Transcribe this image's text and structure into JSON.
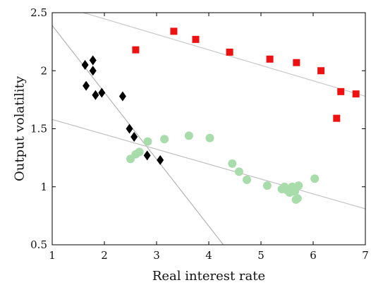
{
  "chart_data": {
    "type": "scatter",
    "title": "",
    "xlabel": "Real interest rate",
    "ylabel": "Output volatility",
    "xlim": [
      1,
      7
    ],
    "ylim": [
      0.5,
      2.5
    ],
    "x_ticks": [
      "1",
      "2",
      "3",
      "4",
      "5",
      "6",
      "7"
    ],
    "y_ticks": [
      "0.5",
      "1",
      "1.5",
      "2",
      "2.5"
    ],
    "grid": false,
    "legend": "none",
    "series": [
      {
        "marker": "square",
        "color": "#ee1111",
        "points": [
          [
            2.6,
            2.18
          ],
          [
            3.33,
            2.34
          ],
          [
            3.75,
            2.27
          ],
          [
            4.4,
            2.16
          ],
          [
            5.17,
            2.1
          ],
          [
            5.68,
            2.07
          ],
          [
            6.15,
            2.0
          ],
          [
            6.45,
            1.59
          ],
          [
            6.53,
            1.82
          ],
          [
            6.82,
            1.8
          ]
        ]
      },
      {
        "marker": "diamond",
        "color": "#000000",
        "points": [
          [
            1.63,
            2.05
          ],
          [
            1.78,
            2.09
          ],
          [
            1.78,
            2.0
          ],
          [
            1.65,
            1.87
          ],
          [
            1.83,
            1.79
          ],
          [
            1.95,
            1.81
          ],
          [
            2.35,
            1.78
          ],
          [
            2.48,
            1.5
          ],
          [
            2.57,
            1.43
          ],
          [
            2.82,
            1.27
          ],
          [
            3.07,
            1.23
          ]
        ]
      },
      {
        "marker": "circle",
        "color": "#a8dcaa",
        "points": [
          [
            2.5,
            1.24
          ],
          [
            2.6,
            1.28
          ],
          [
            2.67,
            1.3
          ],
          [
            2.83,
            1.39
          ],
          [
            3.15,
            1.41
          ],
          [
            3.62,
            1.44
          ],
          [
            4.02,
            1.42
          ],
          [
            4.45,
            1.2
          ],
          [
            4.58,
            1.13
          ],
          [
            4.73,
            1.06
          ],
          [
            5.12,
            1.01
          ],
          [
            5.4,
            0.98
          ],
          [
            5.45,
            1.0
          ],
          [
            5.5,
            0.97
          ],
          [
            5.55,
            0.95
          ],
          [
            5.6,
            1.0
          ],
          [
            5.65,
            0.96
          ],
          [
            5.67,
            0.89
          ],
          [
            5.7,
            0.9
          ],
          [
            5.72,
            1.01
          ],
          [
            6.03,
            1.07
          ]
        ]
      }
    ],
    "fit_lines": [
      {
        "color": "#c8c8c8",
        "from": [
          1.6,
          2.5
        ],
        "to": [
          7.0,
          1.78
        ]
      },
      {
        "color": "#b4b4b4",
        "from": [
          1.0,
          2.39
        ],
        "to": [
          4.28,
          0.5
        ]
      },
      {
        "color": "#c0c0c0",
        "from": [
          1.0,
          1.58
        ],
        "to": [
          7.0,
          0.81
        ]
      }
    ]
  }
}
